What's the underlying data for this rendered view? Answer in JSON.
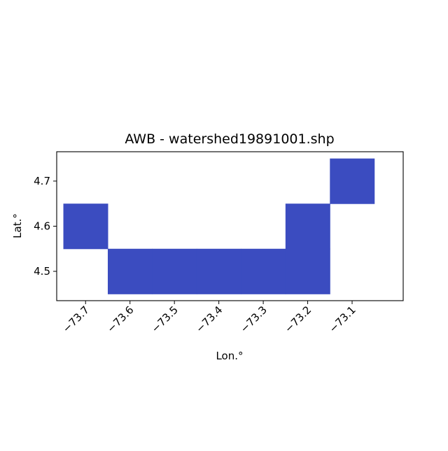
{
  "chart_data": {
    "type": "heatmap",
    "title": "AWB - watershed19891001.shp",
    "xlabel": "Lon.°",
    "ylabel": "Lat.°",
    "xlim": [
      -73.765,
      -72.985
    ],
    "ylim": [
      4.435,
      4.765
    ],
    "cell_size": 0.1,
    "fill_color": "#3b4cc0",
    "grid": false,
    "xticks": [
      {
        "value": -73.7,
        "label": "−73.7"
      },
      {
        "value": -73.6,
        "label": "−73.6"
      },
      {
        "value": -73.5,
        "label": "−73.5"
      },
      {
        "value": -73.4,
        "label": "−73.4"
      },
      {
        "value": -73.3,
        "label": "−73.3"
      },
      {
        "value": -73.2,
        "label": "−73.2"
      },
      {
        "value": -73.1,
        "label": "−73.1"
      }
    ],
    "yticks": [
      {
        "value": 4.5,
        "label": "4.5"
      },
      {
        "value": 4.6,
        "label": "4.6"
      },
      {
        "value": 4.7,
        "label": "4.7"
      }
    ],
    "cells": [
      {
        "lon": -73.7,
        "lat": 4.6
      },
      {
        "lon": -73.6,
        "lat": 4.5
      },
      {
        "lon": -73.5,
        "lat": 4.5
      },
      {
        "lon": -73.4,
        "lat": 4.5
      },
      {
        "lon": -73.3,
        "lat": 4.5
      },
      {
        "lon": -73.2,
        "lat": 4.5
      },
      {
        "lon": -73.2,
        "lat": 4.6
      },
      {
        "lon": -73.1,
        "lat": 4.7
      }
    ]
  }
}
